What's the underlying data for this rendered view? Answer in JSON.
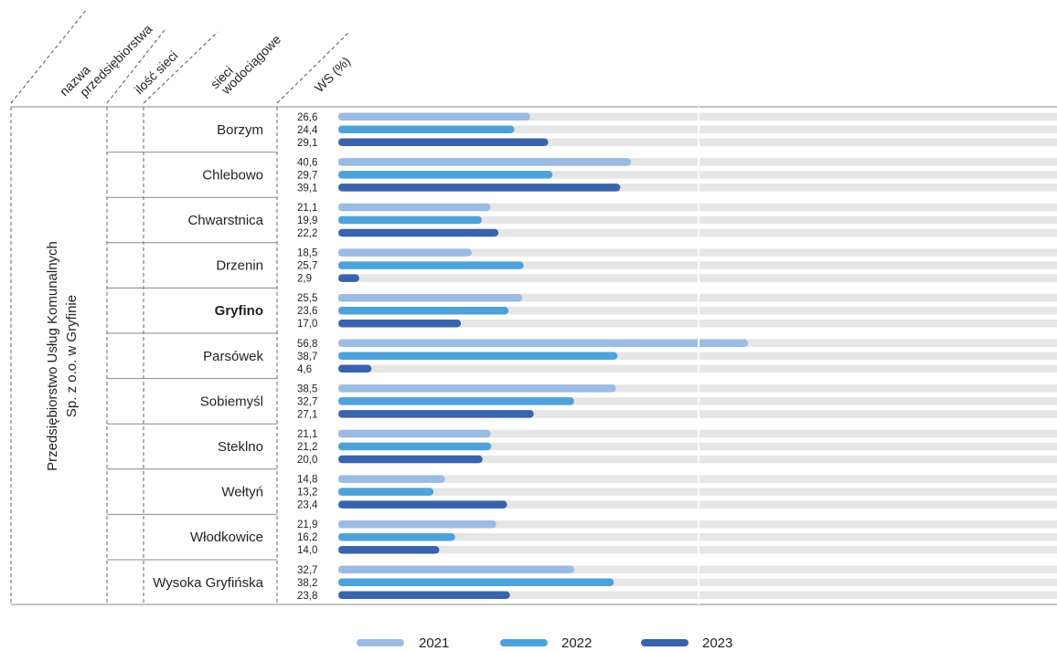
{
  "header": {
    "col1_line1": "nazwa",
    "col1_line2": "przedsiębiorstwa",
    "col2": "ilość sieci",
    "col3_line1": "sieci",
    "col3_line2": "wodociągowe",
    "col4": "WS (%)"
  },
  "company": {
    "line1": "Przedsiębiorstwo Usług Komunalnych",
    "line2": "Sp. z o.o. w Gryfinie"
  },
  "colors": {
    "2021": "#9bbbe2",
    "2022": "#4da3d9",
    "2023": "#3a63ad",
    "track": "#e6e6e6"
  },
  "chart_data": {
    "type": "bar",
    "orientation": "horizontal",
    "categories": [
      "Borzym",
      "Chlebowo",
      "Chwarstnica",
      "Drzenin",
      "Gryfino",
      "Parsówek",
      "Sobiemyśl",
      "Steklno",
      "Wełtyń",
      "Włodkowice",
      "Wysoka Gryfińska"
    ],
    "bold_category": "Gryfino",
    "series": [
      {
        "name": "2021",
        "values": [
          26.6,
          40.6,
          21.1,
          18.5,
          25.5,
          56.8,
          38.5,
          21.1,
          14.8,
          21.9,
          32.7
        ],
        "labels": [
          "26,6",
          "40,6",
          "21,1",
          "18,5",
          "25,5",
          "56,8",
          "38,5",
          "21,1",
          "14,8",
          "21,9",
          "32,7"
        ]
      },
      {
        "name": "2022",
        "values": [
          24.4,
          29.7,
          19.9,
          25.7,
          23.6,
          38.7,
          32.7,
          21.2,
          13.2,
          16.2,
          38.2
        ],
        "labels": [
          "24,4",
          "29,7",
          "19,9",
          "25,7",
          "23,6",
          "38,7",
          "32,7",
          "21,2",
          "13,2",
          "16,2",
          "38,2"
        ]
      },
      {
        "name": "2023",
        "values": [
          29.1,
          39.1,
          22.2,
          2.9,
          17.0,
          4.6,
          27.1,
          20.0,
          23.4,
          14.0,
          23.8
        ],
        "labels": [
          "29,1",
          "39,1",
          "22,2",
          "2,9",
          "17,0",
          "4,6",
          "27,1",
          "20,0",
          "23,4",
          "14,0",
          "23,8"
        ]
      }
    ],
    "xlim": [
      0,
      100
    ],
    "grid": true,
    "legend": "bottom"
  }
}
